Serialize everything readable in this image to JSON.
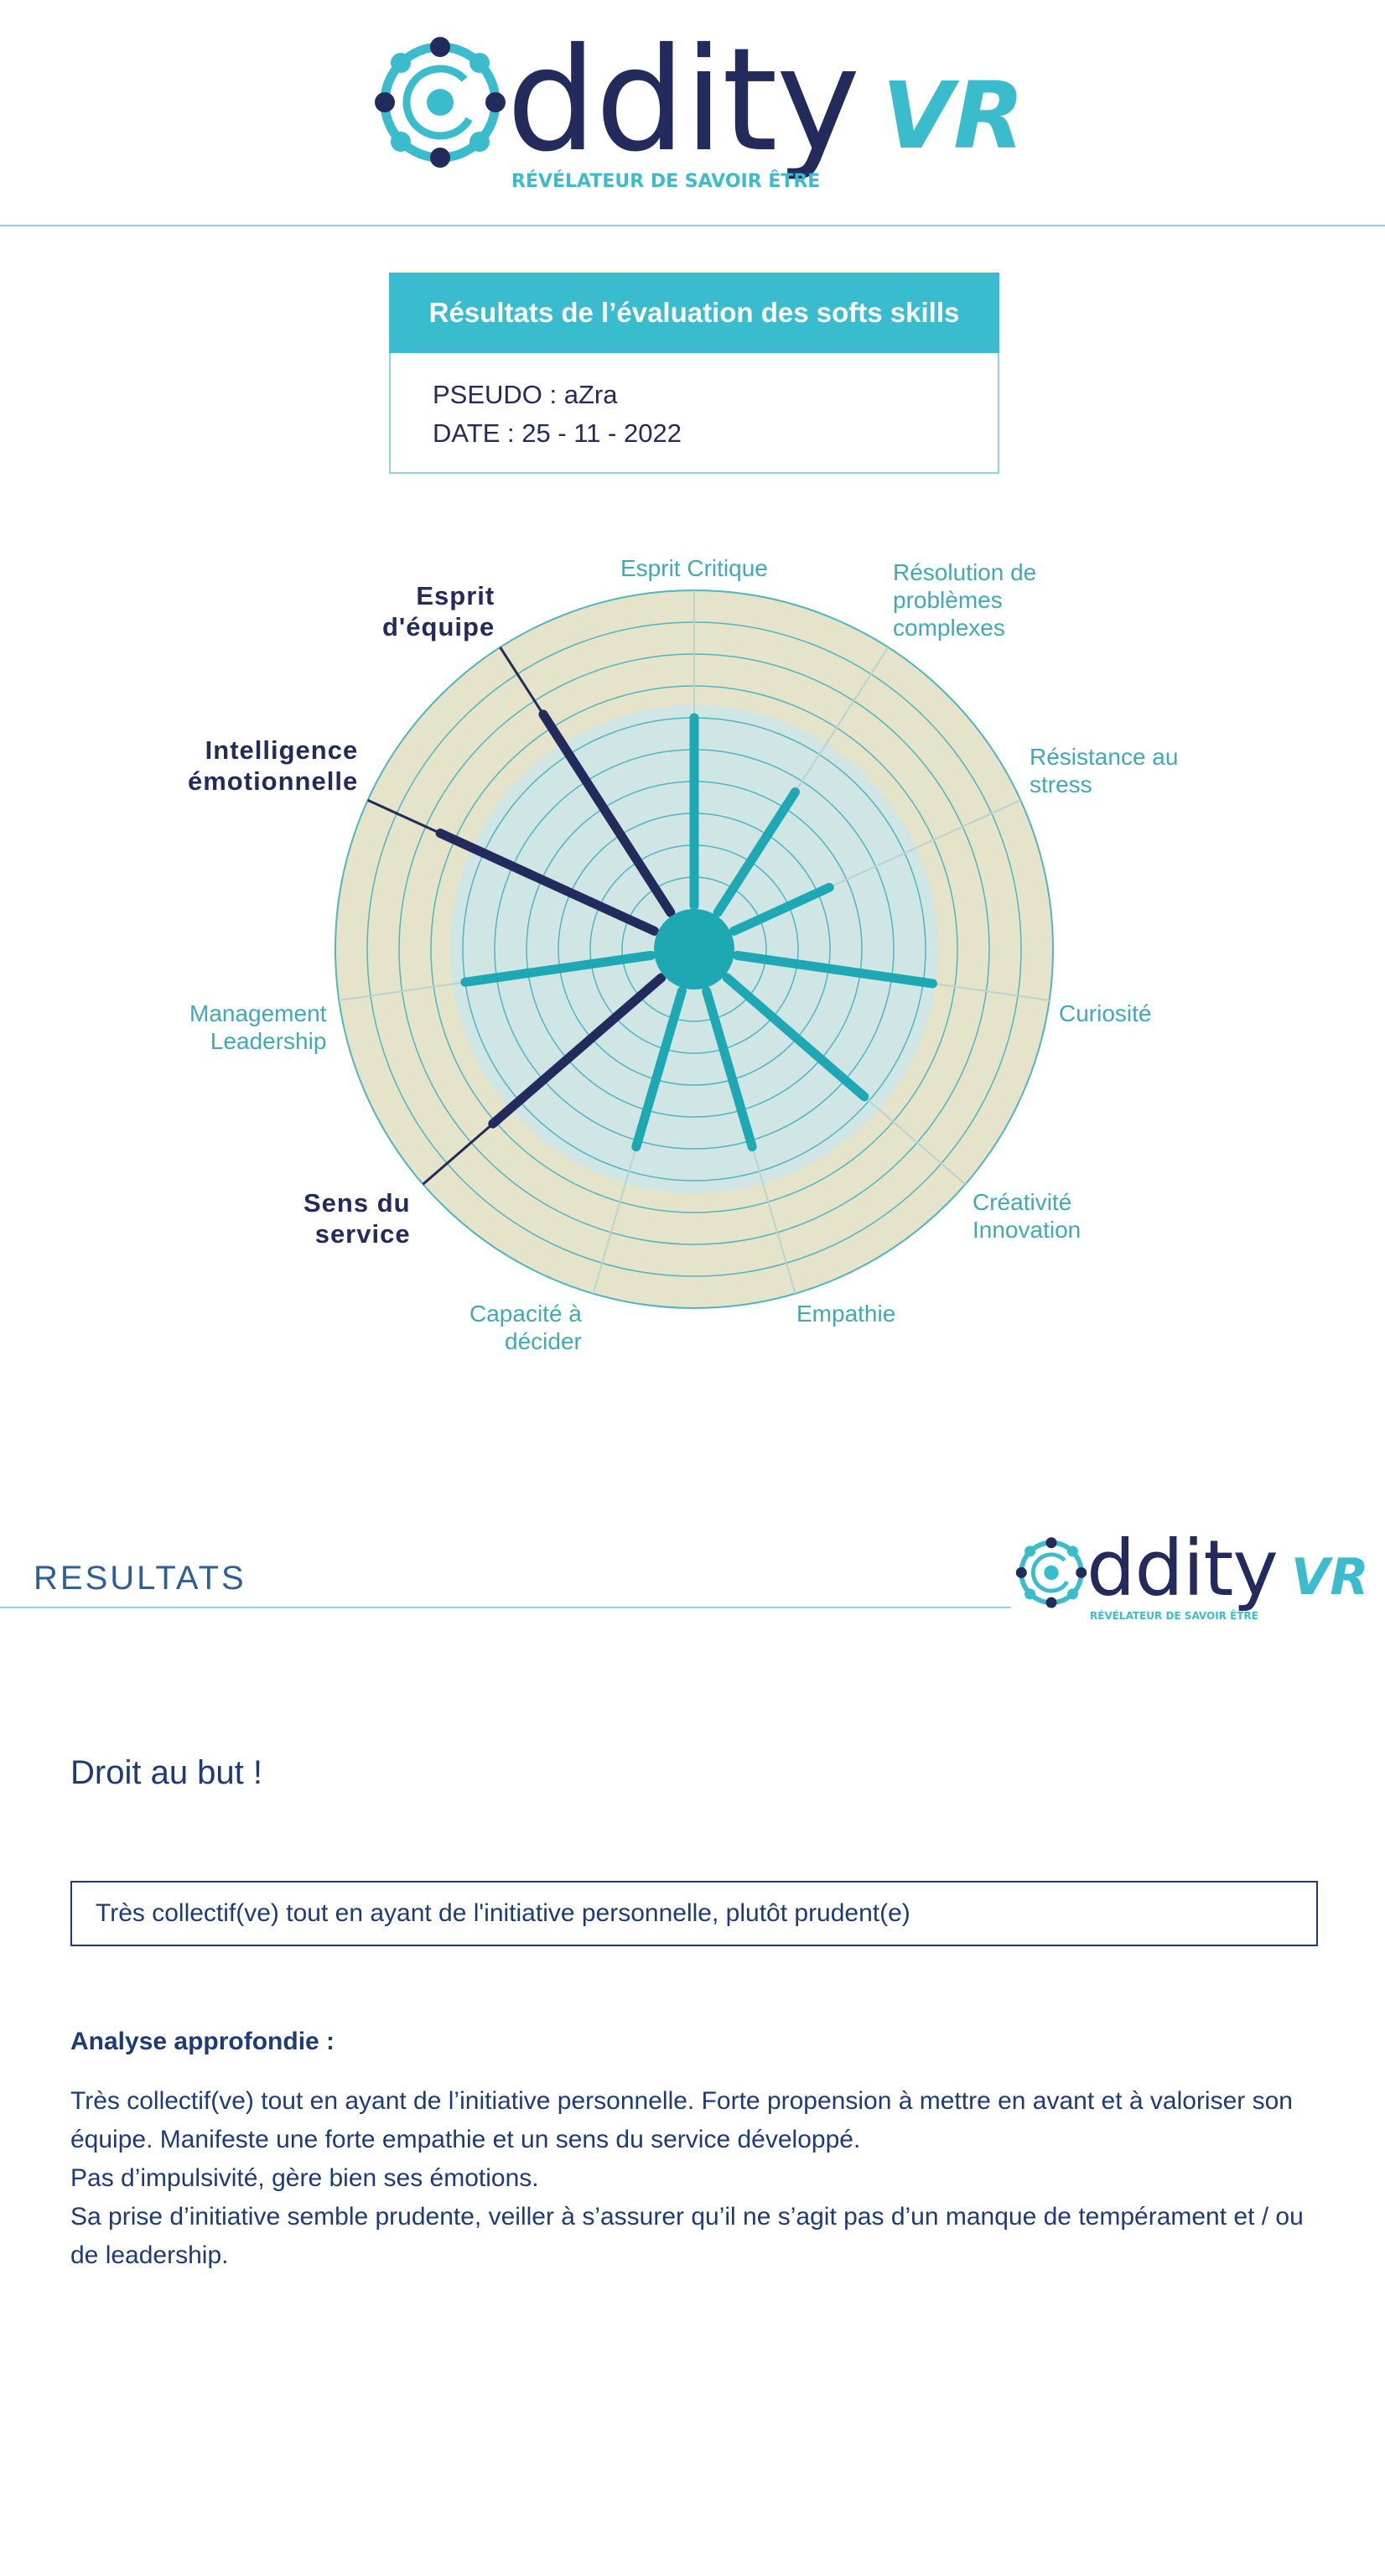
{
  "brand": {
    "logo_word": "ddity",
    "logo_vr": "VR",
    "tagline": "RÉVÉLATEUR DE SAVOIR ÊTRE",
    "color_dark": "#232a5c",
    "color_accent": "#3abccd"
  },
  "results_box": {
    "title": "Résultats de l’évaluation des softs skills",
    "pseudo": "PSEUDO : aZra",
    "date": "DATE : 25 - 11 - 2022"
  },
  "chart_data": {
    "type": "radar",
    "rings": 10,
    "max": 10,
    "axes": [
      {
        "label": "Esprit Critique",
        "value": 6.0,
        "highlight": false
      },
      {
        "label": "Résolution de problèmes complexes",
        "value": 4.6,
        "highlight": false
      },
      {
        "label": "Résistance au stress",
        "value": 3.4,
        "highlight": false
      },
      {
        "label": "Curiosité",
        "value": 6.3,
        "highlight": false
      },
      {
        "label": "Créativité Innovation",
        "value": 5.8,
        "highlight": false
      },
      {
        "label": "Empathie",
        "value": 5.2,
        "highlight": false
      },
      {
        "label": "Capacité à décider",
        "value": 5.2,
        "highlight": false
      },
      {
        "label": "Sens du service",
        "value": 7.1,
        "highlight": true
      },
      {
        "label": "Management Leadership",
        "value": 6.0,
        "highlight": false
      },
      {
        "label": "Intelligence émotionnelle",
        "value": 7.5,
        "highlight": true
      },
      {
        "label": "Esprit d'équipe",
        "value": 7.5,
        "highlight": true
      }
    ],
    "colors": {
      "normal": "#1ea8b4",
      "highlight": "#232a5c",
      "outer_fill": "#e5e3c9",
      "inner_fill": "#cfe6e4"
    }
  },
  "section": {
    "title": "RESULTATS",
    "profile_title": "Droit au but !",
    "summary": "Très collectif(ve) tout en ayant de l'initiative personnelle, plutôt prudent(e)",
    "analysis_heading": "Analyse approfondie :",
    "analysis_paragraphs": [
      "Très collectif(ve) tout en ayant de l’initiative personnelle. Forte propension à mettre en avant et à valoriser son équipe. Manifeste une forte empathie et un sens du service développé.",
      "Pas d’impulsivité, gère bien ses émotions.",
      "Sa prise d’initiative semble prudente, veiller à s’assurer qu’il ne s’agit pas d’un manque de tempérament et / ou de leadership."
    ]
  }
}
